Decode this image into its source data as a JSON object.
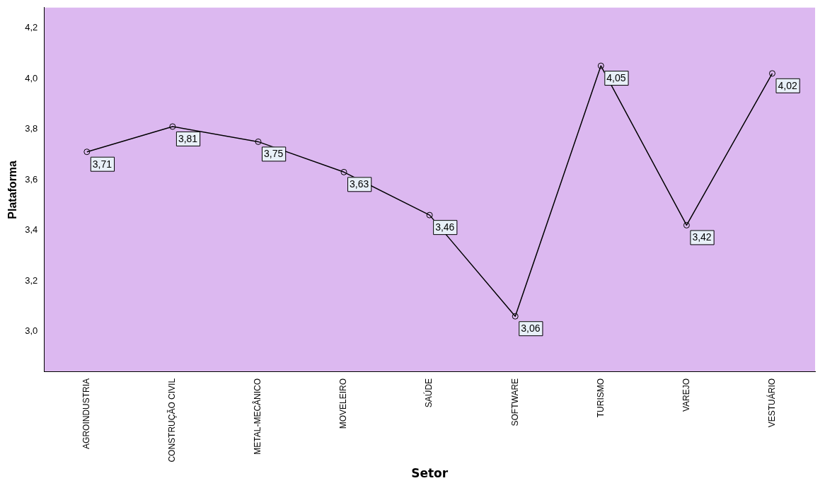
{
  "chart_data": {
    "type": "line",
    "xlabel": "Setor",
    "ylabel": "Plataforma",
    "categories": [
      "AGROINDUSTRIA",
      "CONSTRUÇÃO CIVIL",
      "METAL-MECÂNICO",
      "MOVELEIRO",
      "SAÚDE",
      "SOFTWARE",
      "TURISMO",
      "VAREJO",
      "VESTUÁRIO"
    ],
    "series": [
      {
        "color": "#000000",
        "values": [
          3.71,
          3.81,
          3.75,
          3.63,
          3.46,
          3.06,
          4.05,
          3.42,
          4.02
        ],
        "value_labels": [
          "3,71",
          "3,81",
          "3,75",
          "3,63",
          "3,46",
          "3,06",
          "4,05",
          "3,42",
          "4,02"
        ]
      }
    ],
    "ylim": [
      2.84,
      4.28
    ],
    "yticks": [
      {
        "value": 3.0,
        "label": "3,0"
      },
      {
        "value": 3.2,
        "label": "3,2"
      },
      {
        "value": 3.4,
        "label": "3,4"
      },
      {
        "value": 3.6,
        "label": "3,6"
      },
      {
        "value": 3.8,
        "label": "3,8"
      },
      {
        "value": 4.0,
        "label": "4,0"
      },
      {
        "value": 4.2,
        "label": "4,2"
      }
    ],
    "marker": "circle",
    "line_style": "solid",
    "grid": false,
    "legend": false
  }
}
